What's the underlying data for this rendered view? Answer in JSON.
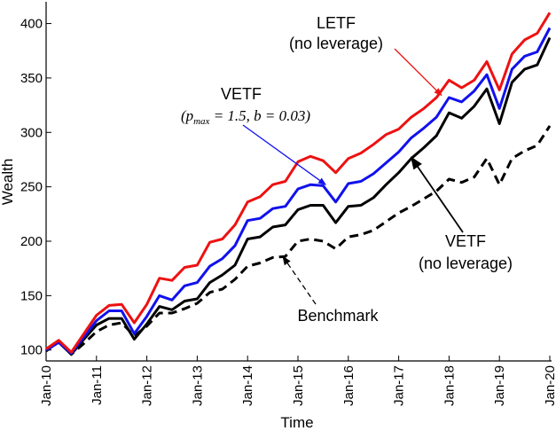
{
  "chart_data": {
    "type": "line",
    "xlabel": "Time",
    "ylabel": "Wealth",
    "xlim": [
      2010,
      2020
    ],
    "ylim": [
      90,
      420
    ],
    "x_ticks": [
      {
        "value": 2010,
        "label": "Jan-10"
      },
      {
        "value": 2011,
        "label": "Jan-11"
      },
      {
        "value": 2012,
        "label": "Jan-12"
      },
      {
        "value": 2013,
        "label": "Jan-13"
      },
      {
        "value": 2014,
        "label": "Jan-14"
      },
      {
        "value": 2015,
        "label": "Jan-15"
      },
      {
        "value": 2016,
        "label": "Jan-16"
      },
      {
        "value": 2017,
        "label": "Jan-17"
      },
      {
        "value": 2018,
        "label": "Jan-18"
      },
      {
        "value": 2019,
        "label": "Jan-19"
      },
      {
        "value": 2020,
        "label": "Jan-20"
      }
    ],
    "y_ticks": [
      {
        "value": 100,
        "label": "100"
      },
      {
        "value": 150,
        "label": "150"
      },
      {
        "value": 200,
        "label": "200"
      },
      {
        "value": 250,
        "label": "250"
      },
      {
        "value": 300,
        "label": "300"
      },
      {
        "value": 350,
        "label": "350"
      },
      {
        "value": 400,
        "label": "400"
      }
    ],
    "x": [
      2010.0,
      2010.25,
      2010.5,
      2010.75,
      2011.0,
      2011.25,
      2011.5,
      2011.75,
      2012.0,
      2012.25,
      2012.5,
      2012.75,
      2013.0,
      2013.25,
      2013.5,
      2013.75,
      2014.0,
      2014.25,
      2014.5,
      2014.75,
      2015.0,
      2015.25,
      2015.5,
      2015.75,
      2016.0,
      2016.25,
      2016.5,
      2016.75,
      2017.0,
      2017.25,
      2017.5,
      2017.75,
      2018.0,
      2018.25,
      2018.5,
      2018.75,
      2019.0,
      2019.25,
      2019.5,
      2019.75,
      2020.0
    ],
    "series": [
      {
        "name": "LETF (no leverage)",
        "color": "#ee1111",
        "dash": "solid",
        "values": [
          101,
          109,
          98,
          115,
          132,
          141,
          142,
          125,
          142,
          166,
          164,
          176,
          178,
          199,
          202,
          215,
          236,
          241,
          252,
          255,
          273,
          278,
          274,
          263,
          276,
          281,
          289,
          298,
          303,
          314,
          322,
          332,
          348,
          341,
          348,
          365,
          339,
          372,
          385,
          391,
          410
        ]
      },
      {
        "name": "VETF (p_max = 1.5, b = 0.03)",
        "color": "#1111ee",
        "dash": "solid",
        "values": [
          100,
          107,
          97,
          112,
          127,
          136,
          136,
          115,
          131,
          150,
          146,
          159,
          162,
          177,
          184,
          196,
          219,
          221,
          230,
          232,
          248,
          252,
          251,
          236,
          253,
          255,
          262,
          272,
          282,
          295,
          304,
          314,
          332,
          328,
          338,
          353,
          322,
          358,
          370,
          374,
          396
        ]
      },
      {
        "name": "VETF (no leverage)",
        "color": "#000000",
        "dash": "solid",
        "values": [
          100,
          107,
          96,
          110,
          123,
          129,
          129,
          110,
          124,
          140,
          137,
          145,
          147,
          162,
          169,
          178,
          202,
          204,
          213,
          215,
          229,
          233,
          233,
          217,
          232,
          233,
          240,
          252,
          263,
          276,
          286,
          297,
          318,
          313,
          324,
          340,
          308,
          346,
          358,
          362,
          387
        ]
      },
      {
        "name": "Benchmark",
        "color": "#000000",
        "dash": "dashed",
        "values": [
          99,
          108,
          96,
          106,
          117,
          123,
          125,
          113,
          122,
          134,
          134,
          138,
          143,
          153,
          156,
          165,
          177,
          180,
          185,
          186,
          200,
          202,
          200,
          193,
          204,
          206,
          210,
          218,
          226,
          232,
          239,
          246,
          257,
          254,
          259,
          276,
          252,
          276,
          283,
          288,
          306
        ]
      }
    ],
    "annotations": [
      {
        "id": "letf",
        "lines": [
          "LETF",
          "(no leverage)"
        ],
        "arrow_to": {
          "x": 2017.85,
          "y": 334
        },
        "color": "#ee1111"
      },
      {
        "id": "vetf-lev",
        "title": "VETF",
        "formula": [
          "(p",
          "max",
          " = 1.5, b = 0.03)"
        ],
        "arrow_to": {
          "x": 2015.55,
          "y": 252
        },
        "color": "#1111ee"
      },
      {
        "id": "vetf-nolev",
        "lines": [
          "VETF",
          "(no leverage)"
        ],
        "arrow_to": {
          "x": 2017.25,
          "y": 277
        },
        "color": "#000000"
      },
      {
        "id": "benchmark",
        "lines": [
          "Benchmark"
        ],
        "arrow_to": {
          "x": 2014.7,
          "y": 186
        },
        "color": "#000000"
      }
    ]
  }
}
